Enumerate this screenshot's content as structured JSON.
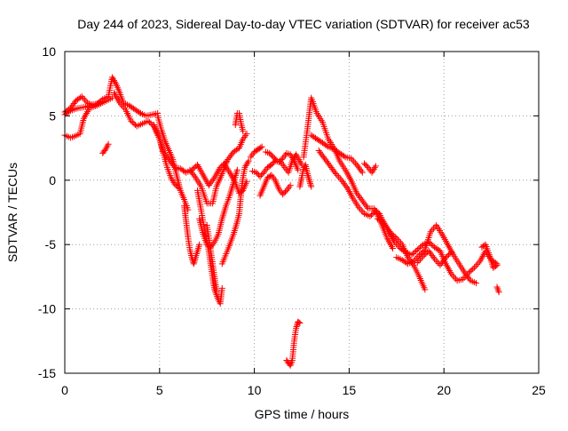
{
  "chart_data": {
    "type": "scatter",
    "title": "Day 244 of 2023, Sidereal Day-to-day VTEC variation (SDTVAR) for receiver ac53",
    "xlabel": "GPS time / hours",
    "ylabel": "SDTVAR / TECUs",
    "xlim": [
      0,
      25
    ],
    "ylim": [
      -15,
      10
    ],
    "x_ticks": [
      0,
      5,
      10,
      15,
      20,
      25
    ],
    "y_ticks": [
      10,
      5,
      0,
      -5,
      -10,
      -15
    ],
    "x_tick_labels": [
      "0",
      "5",
      "10",
      "15",
      "20",
      "25"
    ],
    "y_tick_labels": [
      "10",
      "5",
      "0",
      "-5",
      "-10",
      "-15"
    ],
    "grid": true,
    "marker": "+",
    "series": [
      {
        "name": "SDTVAR",
        "color": "#ff0000",
        "tracks": [
          {
            "x": [
              0.0,
              0.3,
              0.6,
              0.9,
              1.2,
              1.6,
              2.0,
              2.3,
              2.5,
              2.7,
              2.9,
              3.1,
              3.4,
              3.7,
              4.0,
              4.3,
              4.6,
              4.9
            ],
            "y": [
              5.3,
              5.6,
              6.2,
              6.5,
              6.0,
              5.8,
              6.3,
              6.5,
              8.0,
              7.5,
              6.8,
              6.0,
              5.8,
              5.5,
              5.2,
              5.0,
              5.1,
              5.2
            ]
          },
          {
            "x": [
              0.0,
              0.3,
              0.7,
              1.1,
              1.5,
              1.9
            ],
            "y": [
              5.1,
              5.4,
              5.6,
              5.7,
              5.9,
              6.0
            ]
          },
          {
            "x": [
              0.0,
              0.3,
              0.5,
              0.8,
              1.0,
              1.3,
              1.7,
              2.1,
              2.5
            ],
            "y": [
              3.5,
              3.3,
              3.4,
              3.6,
              4.8,
              5.6,
              5.8,
              6.1,
              6.4
            ]
          },
          {
            "x": [
              2.0,
              2.15,
              2.3
            ],
            "y": [
              2.1,
              2.4,
              2.8
            ]
          },
          {
            "x": [
              2.6,
              2.9,
              3.2,
              3.5,
              3.8,
              4.1,
              4.4,
              4.7,
              5.0,
              5.2,
              5.5,
              5.8,
              6.1,
              6.4,
              6.7,
              7.0,
              7.3,
              7.6,
              7.9,
              8.2,
              8.5
            ],
            "y": [
              6.8,
              6.0,
              5.5,
              4.6,
              4.2,
              4.4,
              4.6,
              4.2,
              3.2,
              2.2,
              1.6,
              1.0,
              0.9,
              0.6,
              0.8,
              1.2,
              0.4,
              -0.4,
              0.2,
              1.0,
              1.4
            ]
          },
          {
            "x": [
              4.9,
              5.1,
              5.3,
              5.5,
              5.7,
              5.9,
              6.1,
              6.3,
              6.5
            ],
            "y": [
              5.0,
              3.9,
              3.0,
              2.3,
              1.6,
              0.4,
              -0.8,
              -1.5,
              -2.3
            ]
          },
          {
            "x": [
              4.7,
              5.0,
              5.2,
              5.4,
              5.6,
              5.8,
              6.0
            ],
            "y": [
              4.3,
              3.2,
              2.1,
              1.0,
              0.2,
              -0.3,
              -0.6
            ]
          },
          {
            "x": [
              6.3,
              6.4,
              6.5,
              6.6,
              6.7,
              6.8,
              6.9,
              7.1
            ],
            "y": [
              -2.0,
              -3.2,
              -4.4,
              -5.4,
              -6.0,
              -6.5,
              -6.0,
              -5.0
            ]
          },
          {
            "x": [
              6.6,
              6.9,
              7.2,
              7.5,
              7.8,
              8.0,
              8.3,
              8.6,
              8.9,
              9.2,
              9.4,
              9.6
            ],
            "y": [
              0.8,
              0.2,
              -0.5,
              -1.8,
              -1.8,
              -0.5,
              0.5,
              1.6,
              2.2,
              2.5,
              3.2,
              3.6
            ]
          },
          {
            "x": [
              7.0,
              7.2,
              7.4,
              7.6,
              7.7,
              7.8,
              7.9,
              8.0,
              8.1,
              8.2,
              8.3
            ],
            "y": [
              -0.8,
              -2.4,
              -4.1,
              -5.5,
              -6.6,
              -7.6,
              -8.5,
              -8.9,
              -9.3,
              -9.6,
              -8.4
            ]
          },
          {
            "x": [
              7.1,
              7.3,
              7.5,
              7.7,
              7.9,
              8.1,
              8.3,
              8.5,
              8.7,
              8.9,
              9.1
            ],
            "y": [
              -3.0,
              -4.2,
              -5.0,
              -5.2,
              -4.8,
              -4.2,
              -3.0,
              -2.0,
              -1.2,
              -0.2,
              0.8
            ]
          },
          {
            "x": [
              7.5,
              7.6,
              7.7,
              7.8,
              7.9,
              8.0
            ],
            "y": [
              -3.5,
              -4.5,
              -5.5,
              -6.5,
              -7.5,
              -8.6
            ]
          },
          {
            "x": [
              8.3,
              8.6,
              8.9,
              9.1,
              9.2,
              9.3,
              9.4,
              9.5,
              9.7
            ],
            "y": [
              -6.5,
              -5.4,
              -4.2,
              -3.2,
              -2.6,
              -1.0,
              0.2,
              1.0,
              1.5
            ]
          },
          {
            "x": [
              8.4,
              8.7,
              9.0,
              9.2,
              9.4,
              9.6
            ],
            "y": [
              1.3,
              0.6,
              -0.2,
              -1.0,
              -0.8,
              -0.1
            ]
          },
          {
            "x": [
              9.0,
              9.1,
              9.2,
              9.3,
              9.4
            ],
            "y": [
              4.3,
              5.2,
              5.2,
              4.4,
              3.8
            ]
          },
          {
            "x": [
              9.8,
              10.0,
              10.2,
              10.4
            ],
            "y": [
              1.8,
              2.2,
              2.4,
              2.6
            ]
          },
          {
            "x": [
              9.9,
              10.1,
              10.3,
              10.5,
              10.7,
              10.9,
              11.1,
              11.3,
              11.5,
              11.7,
              11.9,
              12.1,
              12.3
            ],
            "y": [
              0.7,
              0.6,
              0.3,
              0.6,
              1.0,
              1.2,
              1.5,
              1.4,
              1.7,
              2.1,
              2.0,
              1.5,
              0.8
            ]
          },
          {
            "x": [
              10.3,
              10.5,
              10.7,
              10.9,
              11.1,
              11.3,
              11.5,
              11.7,
              11.9
            ],
            "y": [
              -1.2,
              -0.5,
              0.2,
              0.4,
              0.0,
              -0.7,
              -1.1,
              -0.8,
              -0.4
            ]
          },
          {
            "x": [
              10.6,
              10.8,
              11.0,
              11.2,
              11.4,
              11.6,
              11.8,
              12.0,
              12.2,
              12.5
            ],
            "y": [
              2.2,
              2.1,
              1.8,
              1.5,
              1.4,
              1.0,
              0.6,
              1.5,
              2.0,
              1.2
            ]
          },
          {
            "x": [
              11.7,
              11.8,
              11.9,
              12.0,
              12.1,
              12.2,
              12.3,
              12.4
            ],
            "y": [
              -14.0,
              -14.2,
              -14.4,
              -14.0,
              -12.5,
              -11.5,
              -11.0,
              -11.1
            ]
          },
          {
            "x": [
              12.4,
              12.5,
              12.6,
              12.7,
              12.8,
              12.9,
              13.0
            ],
            "y": [
              -0.5,
              0.2,
              1.0,
              1.2,
              0.5,
              0.0,
              -0.5
            ]
          },
          {
            "x": [
              12.6,
              12.8,
              13.0,
              13.3,
              13.6,
              13.9,
              14.2,
              14.5,
              14.8,
              15.1,
              15.4,
              15.7,
              16.0,
              16.3,
              16.6,
              16.9,
              17.2,
              17.5,
              17.8,
              18.1,
              18.4,
              18.7,
              19.0
            ],
            "y": [
              1.8,
              4.0,
              6.4,
              5.2,
              4.5,
              3.2,
              2.5,
              1.5,
              0.8,
              0.0,
              -1.0,
              -1.6,
              -2.2,
              -2.2,
              -2.6,
              -3.5,
              -4.1,
              -4.5,
              -5.0,
              -6.0,
              -6.6,
              -7.5,
              -8.5
            ]
          },
          {
            "x": [
              13.0,
              13.3,
              13.6,
              13.9,
              14.2,
              14.5,
              14.8,
              15.1,
              15.4,
              15.7
            ],
            "y": [
              3.5,
              3.2,
              2.9,
              2.6,
              2.4,
              2.1,
              1.8,
              1.7,
              1.2,
              0.6
            ]
          },
          {
            "x": [
              13.4,
              13.7,
              14.0,
              14.3,
              14.6,
              14.9,
              15.2,
              15.5,
              15.8,
              16.1,
              16.4,
              16.7,
              17.0,
              17.3
            ],
            "y": [
              2.3,
              1.7,
              1.1,
              0.5,
              0.0,
              -0.6,
              -1.4,
              -2.1,
              -2.6,
              -2.8,
              -2.4,
              -3.4,
              -4.5,
              -5.3
            ]
          },
          {
            "x": [
              15.8,
              16.0,
              16.2,
              16.4
            ],
            "y": [
              1.3,
              1.0,
              0.6,
              1.1
            ]
          },
          {
            "x": [
              16.5,
              16.8,
              17.1,
              17.4,
              17.7,
              18.0,
              18.3,
              18.6,
              18.9,
              19.2,
              19.5,
              19.8,
              20.1,
              20.4,
              20.7,
              21.0,
              21.3,
              21.6,
              21.9,
              22.2,
              22.5,
              22.8
            ],
            "y": [
              -3.0,
              -3.2,
              -4.0,
              -4.8,
              -5.3,
              -5.6,
              -5.8,
              -5.4,
              -5.0,
              -4.8,
              -5.2,
              -5.5,
              -6.5,
              -7.3,
              -7.8,
              -7.7,
              -7.2,
              -6.8,
              -6.3,
              -5.5,
              -6.2,
              -6.5
            ]
          },
          {
            "x": [
              17.5,
              17.8,
              18.1,
              18.4,
              18.7,
              19.0,
              19.3,
              19.6,
              19.9,
              20.2,
              20.5,
              20.8,
              21.1,
              21.4,
              21.7
            ],
            "y": [
              -6.0,
              -6.2,
              -6.5,
              -6.3,
              -5.8,
              -5.4,
              -4.0,
              -3.5,
              -4.2,
              -5.0,
              -5.8,
              -6.5,
              -7.2,
              -7.8,
              -8.0
            ]
          },
          {
            "x": [
              18.6,
              18.9,
              19.2,
              19.5,
              19.8,
              20.1,
              20.4
            ],
            "y": [
              -6.4,
              -5.9,
              -5.5,
              -6.1,
              -6.6,
              -6.0,
              -5.6
            ]
          },
          {
            "x": [
              22.0,
              22.2,
              22.4,
              22.6,
              22.8
            ],
            "y": [
              -5.2,
              -5.0,
              -5.8,
              -6.8,
              -6.6
            ]
          },
          {
            "x": [
              22.8,
              22.9
            ],
            "y": [
              -8.3,
              -8.7
            ]
          }
        ]
      }
    ]
  }
}
